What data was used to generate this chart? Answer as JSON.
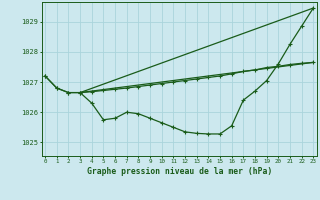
{
  "background_color": "#cce8ee",
  "grid_color": "#b8dde4",
  "line_color": "#1a5c1a",
  "title": "Graphe pression niveau de la mer (hPa)",
  "ylim": [
    1024.55,
    1029.65
  ],
  "yticks": [
    1025,
    1026,
    1027,
    1028,
    1029
  ],
  "xlim": [
    -0.3,
    23.3
  ],
  "xticks": [
    0,
    1,
    2,
    3,
    4,
    5,
    6,
    7,
    8,
    9,
    10,
    11,
    12,
    13,
    14,
    15,
    16,
    17,
    18,
    19,
    20,
    21,
    22,
    23
  ],
  "series": [
    {
      "x": [
        0,
        1,
        2,
        3,
        4,
        5,
        6,
        7,
        8,
        9,
        10,
        11,
        12,
        13,
        14,
        15,
        16,
        17,
        18,
        19,
        20,
        21,
        22,
        23
      ],
      "y": [
        1027.2,
        1026.8,
        1026.65,
        1026.65,
        1026.3,
        1025.75,
        1025.8,
        1026.0,
        1025.95,
        1025.8,
        1025.65,
        1025.5,
        1025.35,
        1025.3,
        1025.28,
        1025.28,
        1025.55,
        1026.4,
        1026.7,
        1027.05,
        1027.6,
        1028.25,
        1028.85,
        1029.45
      ],
      "marker": true
    },
    {
      "x": [
        0,
        1,
        2,
        3,
        4,
        5,
        6,
        7,
        8,
        9,
        10,
        11,
        12,
        13,
        14,
        15,
        16,
        17,
        18,
        19,
        20,
        21,
        22,
        23
      ],
      "y": [
        1027.2,
        1026.8,
        1026.65,
        1026.65,
        1026.68,
        1026.72,
        1026.76,
        1026.8,
        1026.85,
        1026.9,
        1026.95,
        1027.0,
        1027.05,
        1027.1,
        1027.15,
        1027.2,
        1027.27,
        1027.35,
        1027.4,
        1027.48,
        1027.52,
        1027.58,
        1027.62,
        1027.65
      ],
      "marker": true
    },
    {
      "x": [
        3,
        23
      ],
      "y": [
        1026.65,
        1029.45
      ],
      "marker": false
    },
    {
      "x": [
        3,
        23
      ],
      "y": [
        1026.65,
        1027.65
      ],
      "marker": false
    }
  ]
}
